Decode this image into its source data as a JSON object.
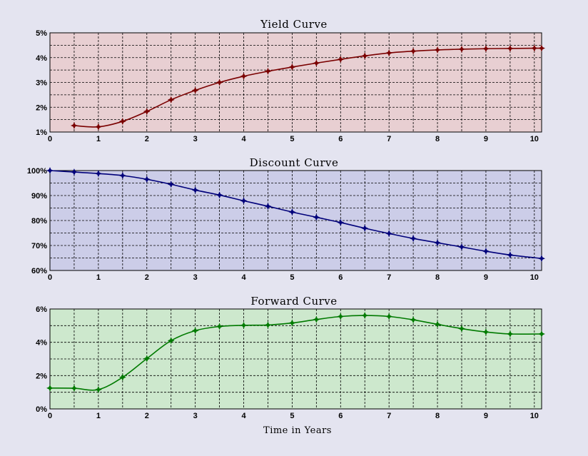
{
  "x_axis_label": "Time in Years",
  "chart_data": [
    {
      "type": "line",
      "title": "Yield Curve",
      "xlabel": "",
      "ylabel": "",
      "xlim": [
        0,
        10.15
      ],
      "ylim": [
        0.01,
        0.05
      ],
      "yticks": [
        0.01,
        0.02,
        0.03,
        0.04,
        0.05
      ],
      "yformat": "percent0",
      "grid": true,
      "background": "#e8cfd2",
      "color": "#7a0000",
      "x": [
        0.5,
        1.0,
        1.5,
        2.0,
        2.5,
        3.0,
        3.5,
        4.0,
        4.5,
        5.0,
        5.5,
        6.0,
        6.5,
        7.0,
        7.5,
        8.0,
        8.5,
        9.0,
        9.5,
        10.0,
        10.15
      ],
      "values": [
        0.0126,
        0.0121,
        0.0143,
        0.0183,
        0.023,
        0.0268,
        0.03,
        0.0325,
        0.0345,
        0.0362,
        0.0378,
        0.0393,
        0.0407,
        0.0419,
        0.0426,
        0.0431,
        0.0434,
        0.0436,
        0.0437,
        0.0438,
        0.0438
      ]
    },
    {
      "type": "line",
      "title": "Discount Curve",
      "xlabel": "",
      "ylabel": "",
      "xlim": [
        0,
        10.15
      ],
      "ylim": [
        0.6,
        1.0
      ],
      "yticks": [
        0.6,
        0.7,
        0.8,
        0.9,
        1.0
      ],
      "yformat": "percent0",
      "grid": true,
      "background": "#cccde8",
      "color": "#00007a",
      "x": [
        0.0,
        0.5,
        1.0,
        1.5,
        2.0,
        2.5,
        3.0,
        3.5,
        4.0,
        4.5,
        5.0,
        5.5,
        6.0,
        6.5,
        7.0,
        7.5,
        8.0,
        8.5,
        9.0,
        9.5,
        10.15
      ],
      "values": [
        1.0,
        0.994,
        0.988,
        0.98,
        0.965,
        0.945,
        0.922,
        0.902,
        0.879,
        0.857,
        0.834,
        0.813,
        0.792,
        0.769,
        0.748,
        0.728,
        0.711,
        0.694,
        0.677,
        0.662,
        0.648
      ]
    },
    {
      "type": "line",
      "title": "Forward Curve",
      "xlabel": "Time in Years",
      "ylabel": "",
      "xlim": [
        0,
        10.15
      ],
      "ylim": [
        0.0,
        0.06
      ],
      "yticks": [
        0.0,
        0.02,
        0.04,
        0.06
      ],
      "yformat": "percent0",
      "grid": true,
      "background": "#cde8cd",
      "color": "#007a00",
      "x": [
        0.0,
        0.5,
        1.0,
        1.5,
        2.0,
        2.5,
        3.0,
        3.5,
        4.0,
        4.5,
        5.0,
        5.5,
        6.0,
        6.5,
        7.0,
        7.5,
        8.0,
        8.5,
        9.0,
        9.5,
        10.15
      ],
      "values": [
        0.0125,
        0.0124,
        0.0116,
        0.019,
        0.0302,
        0.041,
        0.047,
        0.0495,
        0.0502,
        0.0504,
        0.0516,
        0.0537,
        0.0555,
        0.0561,
        0.0555,
        0.0535,
        0.0508,
        0.0482,
        0.0462,
        0.045,
        0.045
      ]
    }
  ]
}
